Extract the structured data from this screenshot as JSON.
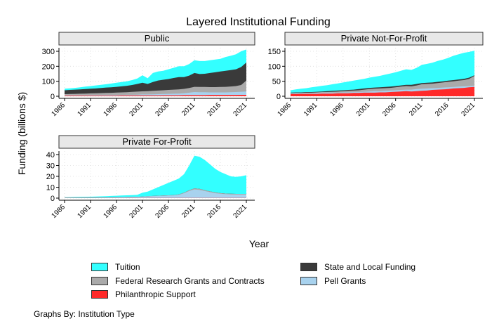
{
  "chart_data": {
    "type": "area",
    "title": "Layered Institutional Funding",
    "xlabel": "Year",
    "ylabel": "Funding (billions $)",
    "note": "Graphs By: Institution Type",
    "x": [
      1986,
      1987,
      1988,
      1989,
      1990,
      1991,
      1992,
      1993,
      1994,
      1995,
      1996,
      1997,
      1998,
      1999,
      2000,
      2001,
      2002,
      2003,
      2004,
      2005,
      2006,
      2007,
      2008,
      2009,
      2010,
      2011,
      2012,
      2013,
      2014,
      2015,
      2016,
      2017,
      2018,
      2019,
      2020,
      2021
    ],
    "xticks": [
      1986,
      1991,
      1996,
      2001,
      2006,
      2011,
      2016,
      2021
    ],
    "series_styles": [
      {
        "name": "Philanthropic Support",
        "color": "#ff2a2a"
      },
      {
        "name": "Pell Grants",
        "color": "#a8d2ee"
      },
      {
        "name": "Federal Research Grants and Contracts",
        "color": "#aaaaaa"
      },
      {
        "name": "State and Local Funding",
        "color": "#3a3a3a"
      },
      {
        "name": "Tuition",
        "color": "#33ffff"
      }
    ],
    "legend": {
      "position": "bottom",
      "entries": [
        {
          "label": "Tuition",
          "color": "#33ffff"
        },
        {
          "label": "State and Local Funding",
          "color": "#3a3a3a"
        },
        {
          "label": "Federal Research Grants and Contracts",
          "color": "#aaaaaa"
        },
        {
          "label": "Pell Grants",
          "color": "#a8d2ee"
        },
        {
          "label": "Philanthropic Support",
          "color": "#ff2a2a"
        }
      ]
    },
    "panels": [
      {
        "title": "Public",
        "ylim": [
          0,
          300
        ],
        "yticks": [
          0,
          100,
          200,
          300
        ],
        "cumulative": [
          [
            4,
            4,
            4,
            4,
            4,
            4,
            4,
            4,
            4,
            4,
            4,
            5,
            5,
            5,
            5,
            5,
            5,
            5,
            5,
            6,
            6,
            6,
            6,
            7,
            7,
            7,
            7,
            7,
            8,
            8,
            8,
            8,
            8,
            8,
            9,
            9
          ],
          [
            7,
            7,
            7,
            7,
            7,
            8,
            8,
            8,
            9,
            9,
            9,
            9,
            10,
            10,
            11,
            12,
            12,
            13,
            14,
            15,
            16,
            17,
            18,
            20,
            24,
            28,
            27,
            27,
            26,
            26,
            26,
            26,
            27,
            28,
            30,
            32
          ],
          [
            14,
            15,
            16,
            17,
            18,
            19,
            20,
            21,
            22,
            23,
            25,
            26,
            27,
            29,
            31,
            33,
            34,
            36,
            38,
            40,
            42,
            44,
            46,
            49,
            55,
            63,
            62,
            62,
            61,
            61,
            62,
            63,
            65,
            68,
            75,
            105
          ],
          [
            40,
            42,
            44,
            46,
            48,
            50,
            52,
            55,
            58,
            60,
            63,
            66,
            70,
            75,
            82,
            90,
            82,
            95,
            105,
            110,
            115,
            122,
            128,
            128,
            138,
            155,
            148,
            150,
            155,
            160,
            165,
            170,
            175,
            180,
            195,
            225
          ],
          [
            50,
            53,
            56,
            60,
            64,
            68,
            72,
            76,
            80,
            85,
            90,
            95,
            100,
            108,
            118,
            140,
            120,
            155,
            165,
            170,
            180,
            190,
            200,
            200,
            215,
            240,
            235,
            235,
            240,
            245,
            250,
            262,
            270,
            280,
            300,
            312
          ]
        ]
      },
      {
        "title": "Private Not-For-Profit",
        "ylim": [
          0,
          150
        ],
        "yticks": [
          0,
          50,
          100,
          150
        ],
        "cumulative": [
          [
            7,
            7,
            8,
            8,
            8,
            8,
            9,
            9,
            9,
            10,
            10,
            10,
            11,
            11,
            12,
            12,
            12,
            13,
            13,
            14,
            15,
            16,
            17,
            16,
            17,
            18,
            19,
            21,
            22,
            23,
            24,
            26,
            27,
            28,
            30,
            31
          ],
          [
            9,
            9,
            10,
            10,
            10,
            11,
            11,
            12,
            12,
            12,
            13,
            13,
            14,
            14,
            15,
            16,
            17,
            17,
            18,
            19,
            20,
            21,
            22,
            22,
            24,
            25,
            26,
            27,
            28,
            29,
            30,
            31,
            32,
            33,
            34,
            35
          ],
          [
            10,
            11,
            11,
            12,
            12,
            13,
            14,
            14,
            15,
            16,
            17,
            18,
            19,
            20,
            22,
            24,
            25,
            26,
            27,
            28,
            30,
            32,
            34,
            33,
            36,
            40,
            41,
            42,
            44,
            46,
            48,
            50,
            52,
            54,
            58,
            68
          ],
          [
            12,
            13,
            13,
            14,
            14,
            15,
            16,
            17,
            18,
            19,
            20,
            21,
            22,
            24,
            26,
            28,
            29,
            30,
            31,
            32,
            34,
            36,
            38,
            38,
            41,
            44,
            45,
            46,
            48,
            50,
            52,
            54,
            56,
            58,
            62,
            70
          ],
          [
            20,
            23,
            25,
            27,
            30,
            32,
            35,
            37,
            40,
            43,
            46,
            49,
            52,
            55,
            58,
            62,
            65,
            68,
            72,
            76,
            80,
            85,
            90,
            88,
            95,
            105,
            108,
            112,
            118,
            122,
            128,
            135,
            140,
            145,
            148,
            152
          ]
        ]
      },
      {
        "title": "Private For-Profit",
        "ylim": [
          0,
          40
        ],
        "yticks": [
          0,
          10,
          20,
          30,
          40
        ],
        "cumulative": [
          [
            0.1,
            0.1,
            0.1,
            0.1,
            0.1,
            0.1,
            0.1,
            0.1,
            0.1,
            0.1,
            0.1,
            0.1,
            0.1,
            0.1,
            0.1,
            0.1,
            0.1,
            0.1,
            0.1,
            0.2,
            0.2,
            0.2,
            0.2,
            0.2,
            0.2,
            0.2,
            0.2,
            0.2,
            0.2,
            0.2,
            0.2,
            0.2,
            0.2,
            0.2,
            0.2,
            0.2
          ],
          [
            0.3,
            0.3,
            0.3,
            0.3,
            0.4,
            0.4,
            0.4,
            0.5,
            0.5,
            0.6,
            0.7,
            0.8,
            0.9,
            1.0,
            1.1,
            1.3,
            1.6,
            1.8,
            2.0,
            2.1,
            2.3,
            2.5,
            3.0,
            4.5,
            6.5,
            8.0,
            7.5,
            6.5,
            5.5,
            4.5,
            4.0,
            3.6,
            3.4,
            3.3,
            3.3,
            3.3
          ],
          [
            0.4,
            0.4,
            0.4,
            0.4,
            0.5,
            0.5,
            0.5,
            0.6,
            0.6,
            0.7,
            0.8,
            0.9,
            1.0,
            1.1,
            1.2,
            1.5,
            1.8,
            2.0,
            2.2,
            2.4,
            2.6,
            2.8,
            3.4,
            5.0,
            7.2,
            9.0,
            8.5,
            7.3,
            6.2,
            5.2,
            4.6,
            4.2,
            4.0,
            3.9,
            3.9,
            3.9
          ],
          [
            0.4,
            0.4,
            0.4,
            0.4,
            0.5,
            0.5,
            0.5,
            0.6,
            0.6,
            0.7,
            0.8,
            0.9,
            1.0,
            1.1,
            1.2,
            1.5,
            1.8,
            2.0,
            2.2,
            2.4,
            2.6,
            2.8,
            3.4,
            5.0,
            7.2,
            9.0,
            8.5,
            7.3,
            6.2,
            5.2,
            4.6,
            4.2,
            4.0,
            3.9,
            3.9,
            3.9
          ],
          [
            0.8,
            0.9,
            1.0,
            1.1,
            1.2,
            1.3,
            1.5,
            1.6,
            1.8,
            2.0,
            2.2,
            2.4,
            2.6,
            2.8,
            3.0,
            5.0,
            6.0,
            8.0,
            10.0,
            12.0,
            14.0,
            16.0,
            18.0,
            22.0,
            30.0,
            39.0,
            38.0,
            35.0,
            31.0,
            27.0,
            24.0,
            22.0,
            20.0,
            19.5,
            20.0,
            21.0
          ]
        ]
      }
    ]
  }
}
